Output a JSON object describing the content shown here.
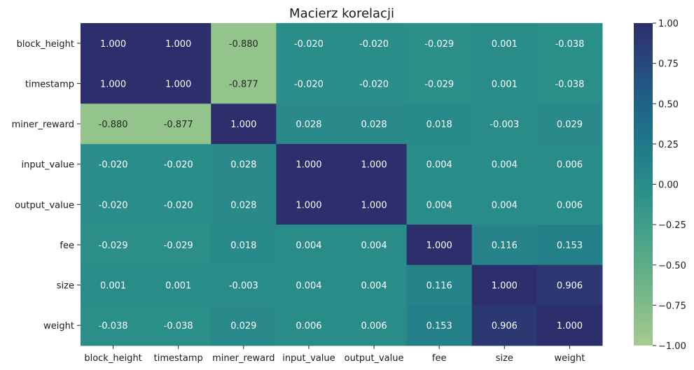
{
  "chart_data": {
    "type": "heatmap",
    "title": "Macierz korelacji",
    "xlabel": "",
    "ylabel": "",
    "rows": [
      "block_height",
      "timestamp",
      "miner_reward",
      "input_value",
      "output_value",
      "fee",
      "size",
      "weight"
    ],
    "columns": [
      "block_height",
      "timestamp",
      "miner_reward",
      "input_value",
      "output_value",
      "fee",
      "size",
      "weight"
    ],
    "values": [
      [
        1.0,
        1.0,
        -0.88,
        -0.02,
        -0.02,
        -0.029,
        0.001,
        -0.038
      ],
      [
        1.0,
        1.0,
        -0.877,
        -0.02,
        -0.02,
        -0.029,
        0.001,
        -0.038
      ],
      [
        -0.88,
        -0.877,
        1.0,
        0.028,
        0.028,
        0.018,
        -0.003,
        0.029
      ],
      [
        -0.02,
        -0.02,
        0.028,
        1.0,
        1.0,
        0.004,
        0.004,
        0.006
      ],
      [
        -0.02,
        -0.02,
        0.028,
        1.0,
        1.0,
        0.004,
        0.004,
        0.006
      ],
      [
        -0.029,
        -0.029,
        0.018,
        0.004,
        0.004,
        1.0,
        0.116,
        0.153
      ],
      [
        0.001,
        0.001,
        -0.003,
        0.004,
        0.004,
        0.116,
        1.0,
        0.906
      ],
      [
        -0.038,
        -0.038,
        0.029,
        0.006,
        0.006,
        0.153,
        0.906,
        1.0
      ]
    ],
    "value_format_decimals": 3,
    "colormap": "crest",
    "vmin": -1.0,
    "vmax": 1.0,
    "colorbar_ticks": [
      "1.00",
      "0.75",
      "0.50",
      "0.25",
      "0.00",
      "−0.25",
      "−0.50",
      "−0.75",
      "−1.00"
    ],
    "colorbar_tick_values": [
      1.0,
      0.75,
      0.5,
      0.25,
      0.0,
      -0.25,
      -0.5,
      -0.75,
      -1.0
    ],
    "colors": {
      "low": "#a3d094",
      "mid": "#2a8c8a",
      "high": "#2c2f6e"
    },
    "grid": false,
    "legend": "colorbar-right"
  }
}
